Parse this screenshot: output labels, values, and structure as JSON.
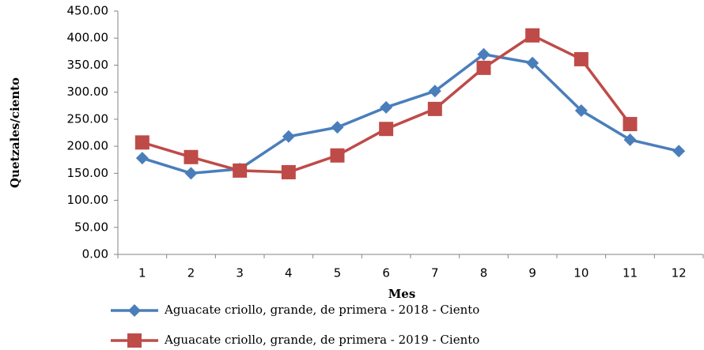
{
  "chart_data": {
    "type": "line",
    "x_label": "Mes",
    "y_label": "Quetzales/ciento",
    "categories": [
      "1",
      "2",
      "3",
      "4",
      "5",
      "6",
      "7",
      "8",
      "9",
      "10",
      "11",
      "12"
    ],
    "series": [
      {
        "name": "Aguacate criollo, grande, de primera - 2018 - Ciento",
        "color": "#4a7ebb",
        "marker": "diamond",
        "values": [
          178,
          150,
          158,
          218,
          235,
          272,
          302,
          370,
          354,
          266,
          212,
          191
        ]
      },
      {
        "name": "Aguacate criollo, grande, de primera - 2019 - Ciento",
        "color": "#be4b48",
        "marker": "square",
        "values": [
          207,
          180,
          155,
          152,
          183,
          232,
          269,
          345,
          405,
          361,
          241,
          null
        ]
      }
    ],
    "ylim": [
      0,
      450
    ],
    "yticks": [
      {
        "value": 0,
        "label": "0.00"
      },
      {
        "value": 50,
        "label": "50.00"
      },
      {
        "value": 100,
        "label": "100.00"
      },
      {
        "value": 150,
        "label": "150.00"
      },
      {
        "value": 200,
        "label": "200.00"
      },
      {
        "value": 250,
        "label": "250.00"
      },
      {
        "value": 300,
        "label": "300.00"
      },
      {
        "value": 350,
        "label": "350.00"
      },
      {
        "value": 400,
        "label": "400.00"
      },
      {
        "value": 450,
        "label": "450.00"
      }
    ],
    "grid": false,
    "legend": "bottom"
  }
}
